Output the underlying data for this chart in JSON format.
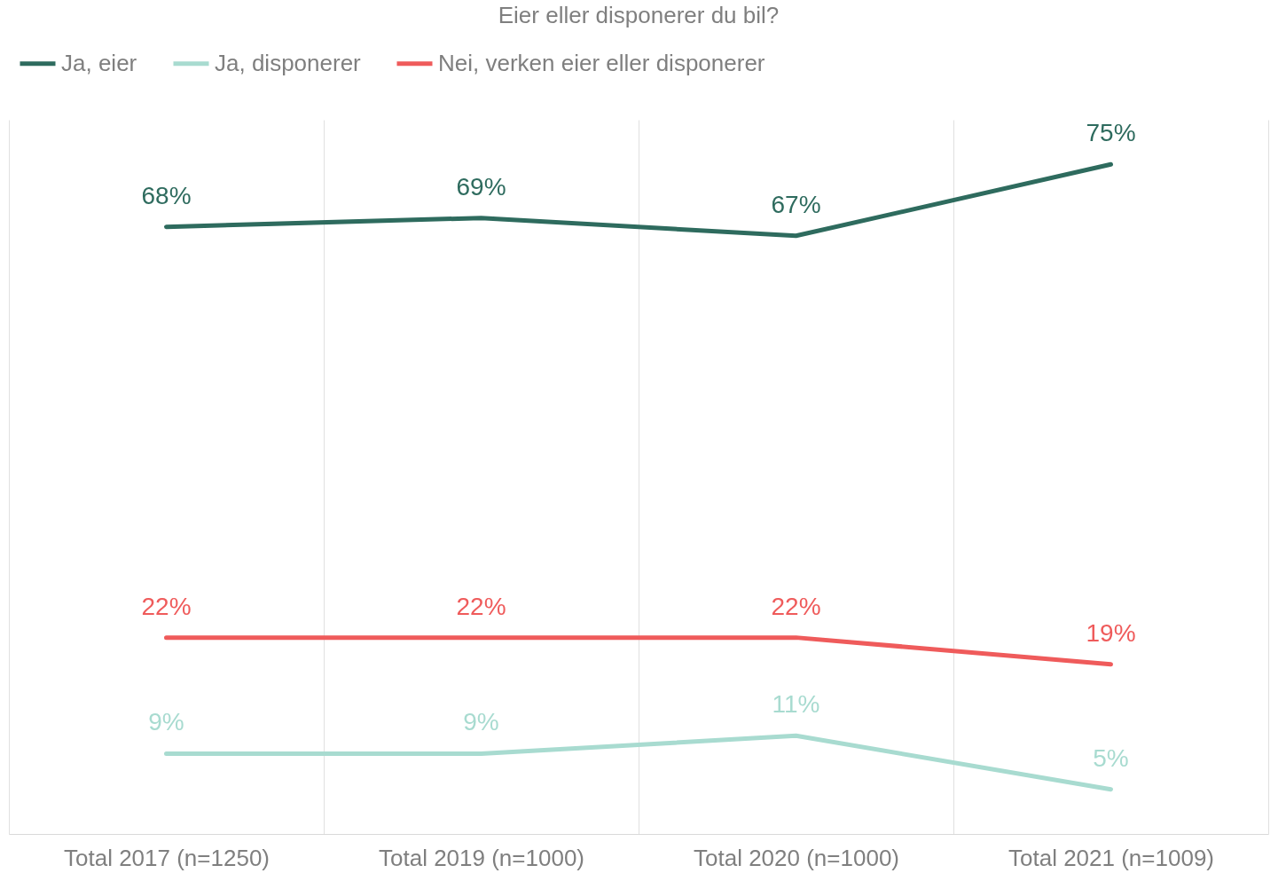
{
  "chart_data": {
    "type": "line",
    "title": "Eier eller disponerer du bil?",
    "categories": [
      "Total 2017 (n=1250)",
      "Total 2019 (n=1000)",
      "Total 2020 (n=1000)",
      "Total 2021 (n=1009)"
    ],
    "series": [
      {
        "name": "Ja, eier",
        "color": "#2e6b5e",
        "values": [
          68,
          69,
          67,
          75
        ],
        "value_labels": [
          "68%",
          "69%",
          "67%",
          "75%"
        ]
      },
      {
        "name": "Ja, disponerer",
        "color": "#a8dbd0",
        "values": [
          9,
          9,
          11,
          5
        ],
        "value_labels": [
          "9%",
          "9%",
          "11%",
          "5%"
        ]
      },
      {
        "name": "Nei, verken eier eller disponerer",
        "color": "#ef5b5b",
        "values": [
          22,
          22,
          22,
          19
        ],
        "value_labels": [
          "22%",
          "22%",
          "22%",
          "19%"
        ]
      }
    ],
    "grid": "x",
    "legend": "top",
    "marker": "none",
    "line_style": "solid"
  }
}
